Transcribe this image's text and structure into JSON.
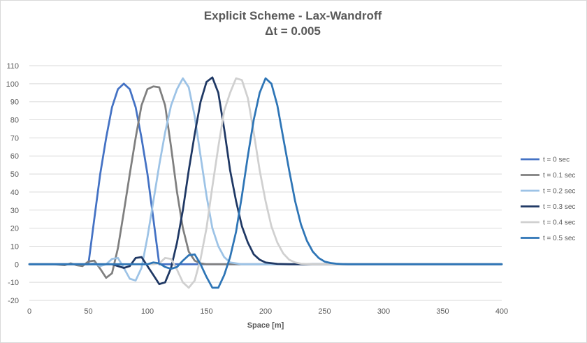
{
  "chart_data": {
    "type": "line",
    "title": "Explicit Scheme - Lax-Wandroff",
    "subtitle": "Δt = 0.005",
    "xlabel": "Space [m]",
    "ylabel": "",
    "xlim": [
      0,
      400
    ],
    "ylim": [
      -20,
      110
    ],
    "x_ticks": [
      0,
      50,
      100,
      150,
      200,
      250,
      300,
      350,
      400
    ],
    "y_ticks": [
      -20,
      -10,
      0,
      10,
      20,
      30,
      40,
      50,
      60,
      70,
      80,
      90,
      100,
      110
    ],
    "grid": "horizontal",
    "legend_position": "right",
    "series": [
      {
        "name": "t = 0 sec",
        "color": "#4472c4",
        "x": [
          0,
          10,
          20,
          30,
          40,
          50,
          55,
          60,
          65,
          70,
          75,
          80,
          85,
          90,
          95,
          100,
          105,
          110,
          115,
          120,
          130,
          140,
          150,
          200,
          250,
          300,
          350,
          400
        ],
        "y": [
          0,
          0,
          0,
          0,
          0,
          0,
          25,
          50,
          70,
          87,
          97,
          100,
          97,
          87,
          70,
          50,
          25,
          0,
          0,
          0,
          0,
          0,
          0,
          0,
          0,
          0,
          0,
          0
        ]
      },
      {
        "name": "t = 0.1 sec",
        "color": "#7f7f7f",
        "x": [
          0,
          20,
          30,
          35,
          40,
          45,
          50,
          55,
          60,
          65,
          70,
          75,
          80,
          85,
          90,
          95,
          100,
          105,
          110,
          115,
          120,
          125,
          130,
          135,
          140,
          145,
          150,
          200,
          250,
          300,
          350,
          400
        ],
        "y": [
          0,
          0,
          -0.5,
          0.5,
          -0.5,
          -1,
          1.5,
          2,
          -2.5,
          -7.5,
          -5,
          9,
          29,
          50,
          70,
          88,
          97,
          98.5,
          98,
          88,
          65,
          40,
          20,
          7,
          2,
          0.5,
          0,
          0,
          0,
          0,
          0,
          0
        ]
      },
      {
        "name": "t = 0.2 sec",
        "color": "#9dc3e6",
        "x": [
          0,
          40,
          50,
          55,
          60,
          65,
          70,
          75,
          80,
          85,
          90,
          95,
          100,
          105,
          110,
          115,
          120,
          125,
          130,
          135,
          140,
          145,
          150,
          155,
          160,
          165,
          170,
          175,
          180,
          200,
          250,
          300,
          350,
          400
        ],
        "y": [
          0,
          0,
          0,
          0.5,
          -1,
          0,
          3,
          3.5,
          -2,
          -8,
          -9,
          -2,
          15,
          35,
          55,
          73,
          88,
          97,
          103,
          98,
          82,
          60,
          38,
          20,
          10,
          4,
          1,
          0.5,
          0,
          0,
          0,
          0,
          0,
          0
        ]
      },
      {
        "name": "t = 0.3 sec",
        "color": "#1f3864",
        "x": [
          0,
          60,
          70,
          80,
          85,
          90,
          95,
          100,
          105,
          110,
          115,
          120,
          125,
          130,
          135,
          140,
          145,
          150,
          155,
          160,
          165,
          170,
          175,
          180,
          185,
          190,
          195,
          200,
          210,
          220,
          250,
          300,
          350,
          400
        ],
        "y": [
          0,
          0,
          0,
          -2,
          -1,
          3.5,
          4,
          -1,
          -6,
          -11,
          -10,
          -2,
          12,
          30,
          52,
          72,
          90,
          101,
          103.5,
          95,
          75,
          52,
          35,
          21,
          12,
          5.5,
          2.5,
          1,
          0.2,
          0,
          0,
          0,
          0,
          0
        ]
      },
      {
        "name": "t = 0.4 sec",
        "color": "#d0d0d0",
        "x": [
          0,
          90,
          100,
          105,
          110,
          115,
          120,
          125,
          130,
          135,
          140,
          145,
          150,
          155,
          160,
          165,
          170,
          175,
          180,
          185,
          190,
          195,
          200,
          205,
          210,
          215,
          220,
          225,
          230,
          240,
          250,
          300,
          350,
          400
        ],
        "y": [
          0,
          0,
          0,
          0,
          0.5,
          3.5,
          3,
          -3,
          -10,
          -13,
          -9,
          3,
          20,
          43,
          65,
          85,
          95,
          103,
          102,
          92,
          73,
          52,
          35,
          21,
          12,
          6,
          2.5,
          1,
          0.3,
          0,
          0,
          0,
          0,
          0
        ]
      },
      {
        "name": "t = 0.5 sec",
        "color": "#2e75b6",
        "x": [
          0,
          90,
          100,
          105,
          110,
          115,
          120,
          125,
          130,
          135,
          140,
          145,
          150,
          155,
          160,
          165,
          170,
          175,
          180,
          185,
          190,
          195,
          200,
          205,
          210,
          215,
          220,
          225,
          230,
          235,
          240,
          245,
          250,
          255,
          260,
          265,
          270,
          300,
          350,
          400
        ],
        "y": [
          0,
          0,
          0,
          1,
          0.5,
          -1.5,
          -2.5,
          -1.5,
          2,
          5,
          5.5,
          0,
          -7,
          -13,
          -13,
          -6,
          4,
          18,
          38,
          60,
          80,
          95,
          103,
          100,
          88,
          70,
          52,
          35,
          22,
          13,
          7,
          3.5,
          1.5,
          0.7,
          0.3,
          0.1,
          0,
          0,
          0,
          0
        ]
      }
    ]
  }
}
